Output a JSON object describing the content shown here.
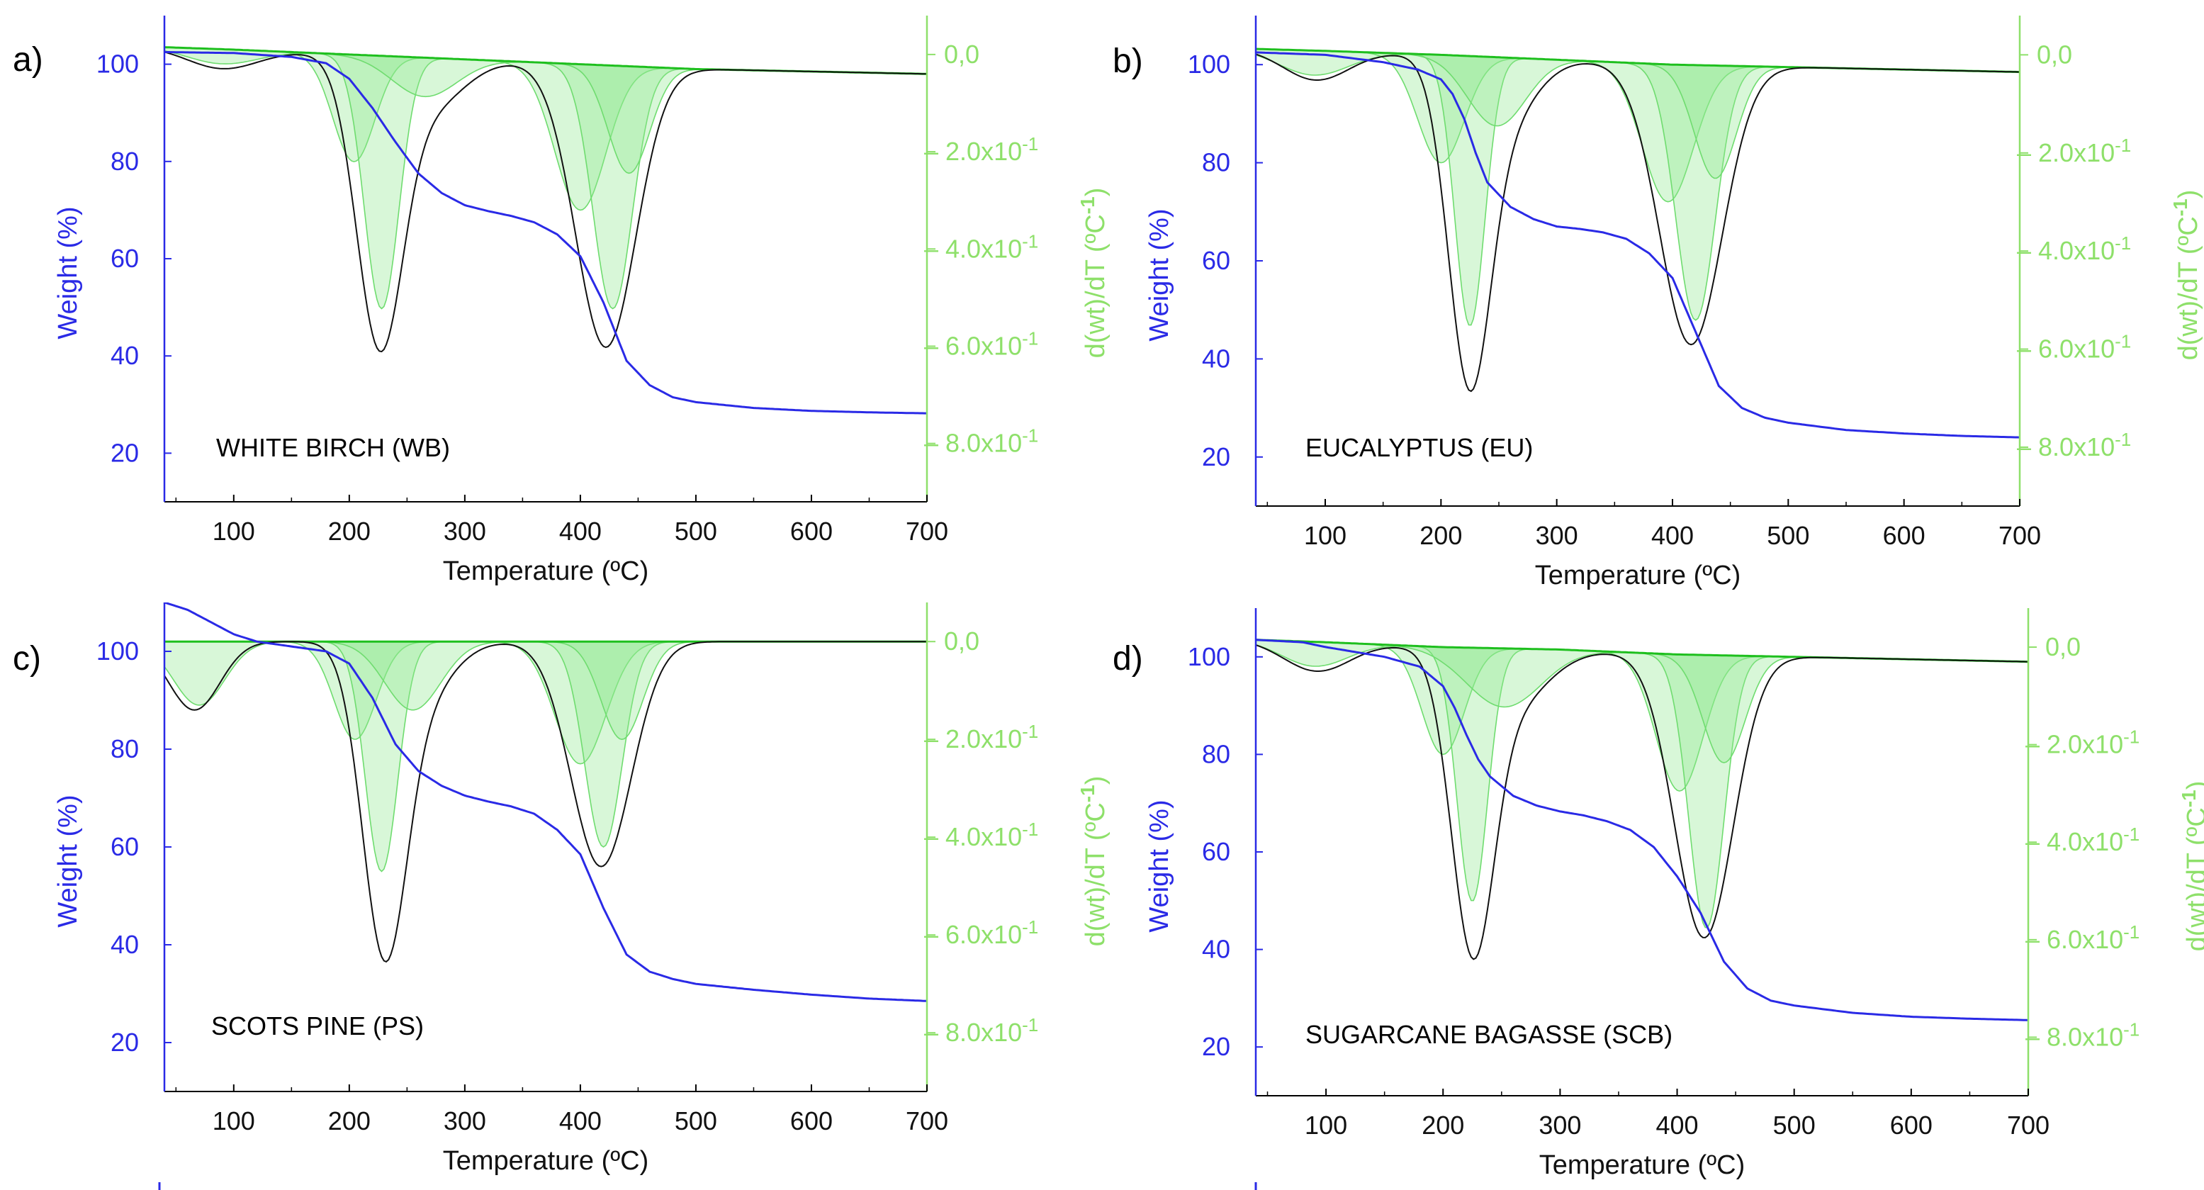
{
  "colors": {
    "weight": "#2a2ae6",
    "dtg_axis": "#8ee06a",
    "dtg_total": "#1ebf1e",
    "dtg_peak_fill": "#8fe88f",
    "dtg_peak_line": "#6fdc6f",
    "dtg_experimental": "#111111",
    "axis": "#000000"
  },
  "chart_data": [
    {
      "type": "line",
      "panel_label": "a)",
      "sample_label": "WHITE BIRCH (WB)",
      "xlabel": "Temperature (ºC)",
      "ylabel": "Weight (%)",
      "y2label": "d(wt)/dT (ºC-1)",
      "xlim": [
        40,
        700
      ],
      "ylim": [
        10,
        110
      ],
      "y2lim": [
        -0.92,
        0.08
      ],
      "xticks": [
        100,
        200,
        300,
        400,
        500,
        600,
        700
      ],
      "yticks": [
        20,
        40,
        60,
        80,
        100
      ],
      "y2ticks": [
        {
          "value": 0.0,
          "label": "0,0"
        },
        {
          "value": -0.2,
          "mantissa": "– 2.0x10",
          "exp": "-1"
        },
        {
          "value": -0.4,
          "mantissa": "– 4.0x10",
          "exp": "-1"
        },
        {
          "value": -0.6,
          "mantissa": "– 6.0x10",
          "exp": "-1"
        },
        {
          "value": -0.8,
          "mantissa": "– 8.0x10",
          "exp": "-1"
        }
      ],
      "weight_curve": {
        "x": [
          40,
          100,
          150,
          180,
          200,
          220,
          240,
          260,
          280,
          300,
          320,
          340,
          360,
          380,
          400,
          420,
          440,
          460,
          480,
          500,
          550,
          600,
          650,
          700
        ],
        "y": [
          102.5,
          102.3,
          101.5,
          100.2,
          97.0,
          91.0,
          84.0,
          77.5,
          73.5,
          71.0,
          69.8,
          68.8,
          67.5,
          65.0,
          60.5,
          51.0,
          39.0,
          34.0,
          31.5,
          30.5,
          29.3,
          28.7,
          28.4,
          28.2
        ]
      },
      "dtg_total": {
        "x": [
          40,
          100,
          200,
          300,
          400,
          500,
          600,
          700
        ],
        "y": [
          0.015,
          0.01,
          0.0,
          -0.01,
          -0.02,
          -0.03,
          -0.035,
          -0.04
        ]
      },
      "dtg_peaks": [
        {
          "center": 90,
          "depth": 0.03,
          "width": 30
        },
        {
          "center": 204,
          "depth": 0.22,
          "width": 18
        },
        {
          "center": 228,
          "depth": 0.52,
          "width": 15
        },
        {
          "center": 265,
          "depth": 0.08,
          "width": 28
        },
        {
          "center": 400,
          "depth": 0.3,
          "width": 22
        },
        {
          "center": 428,
          "depth": 0.5,
          "width": 17
        },
        {
          "center": 442,
          "depth": 0.22,
          "width": 18
        }
      ],
      "dtg_experimental_peaks": [
        {
          "center": 90,
          "depth": 0.04,
          "width": 30
        },
        {
          "center": 226,
          "depth": 0.57,
          "width": 20
        },
        {
          "center": 268,
          "depth": 0.1,
          "width": 30
        },
        {
          "center": 422,
          "depth": 0.58,
          "width": 26
        }
      ]
    },
    {
      "type": "line",
      "panel_label": "b)",
      "sample_label": "EUCALYPTUS (EU)",
      "xlabel": "Temperature (ºC)",
      "ylabel": "Weight (%)",
      "y2label": "d(wt)/dT (ºC-1)",
      "xlim": [
        40,
        700
      ],
      "ylim": [
        10,
        110
      ],
      "y2lim": [
        -0.92,
        0.08
      ],
      "xticks": [
        100,
        200,
        300,
        400,
        500,
        600,
        700
      ],
      "yticks": [
        20,
        40,
        60,
        80,
        100
      ],
      "y2ticks": [
        {
          "value": 0.0,
          "label": "0,0"
        },
        {
          "value": -0.2,
          "mantissa": "– 2.0x10",
          "exp": "-1"
        },
        {
          "value": -0.4,
          "mantissa": "– 4.0x10",
          "exp": "-1"
        },
        {
          "value": -0.6,
          "mantissa": "– 6.0x10",
          "exp": "-1"
        },
        {
          "value": -0.8,
          "mantissa": "– 8.0x10",
          "exp": "-1"
        }
      ],
      "weight_curve": {
        "x": [
          40,
          100,
          150,
          180,
          200,
          210,
          220,
          230,
          240,
          260,
          280,
          300,
          320,
          340,
          360,
          380,
          400,
          420,
          440,
          460,
          480,
          500,
          550,
          600,
          650,
          700
        ],
        "y": [
          102.5,
          102.0,
          100.5,
          99.0,
          97.0,
          94.0,
          89.0,
          82.0,
          76.0,
          71.0,
          68.5,
          67.0,
          66.5,
          65.8,
          64.5,
          61.5,
          56.5,
          45.5,
          34.5,
          30.0,
          28.0,
          27.0,
          25.5,
          24.8,
          24.3,
          24.0
        ]
      },
      "dtg_total": {
        "x": [
          40,
          100,
          200,
          300,
          400,
          500,
          600,
          700
        ],
        "y": [
          0.012,
          0.008,
          0.0,
          -0.01,
          -0.02,
          -0.025,
          -0.03,
          -0.035
        ]
      },
      "dtg_peaks": [
        {
          "center": 90,
          "depth": 0.05,
          "width": 30
        },
        {
          "center": 200,
          "depth": 0.22,
          "width": 20
        },
        {
          "center": 225,
          "depth": 0.55,
          "width": 13
        },
        {
          "center": 248,
          "depth": 0.14,
          "width": 25
        },
        {
          "center": 396,
          "depth": 0.28,
          "width": 22
        },
        {
          "center": 420,
          "depth": 0.52,
          "width": 17
        },
        {
          "center": 437,
          "depth": 0.23,
          "width": 18
        }
      ],
      "dtg_experimental_peaks": [
        {
          "center": 92,
          "depth": 0.06,
          "width": 28
        },
        {
          "center": 224,
          "depth": 0.59,
          "width": 18
        },
        {
          "center": 250,
          "depth": 0.14,
          "width": 28
        },
        {
          "center": 416,
          "depth": 0.57,
          "width": 27
        }
      ]
    },
    {
      "type": "line",
      "panel_label": "c)",
      "sample_label": "SCOTS PINE (PS)",
      "xlabel": "Temperature (ºC)",
      "ylabel": "Weight (%)",
      "y2label": "d(wt)/dT (ºC-1)",
      "xlim": [
        40,
        700
      ],
      "ylim": [
        10,
        110
      ],
      "y2lim": [
        -0.92,
        0.08
      ],
      "xticks": [
        100,
        200,
        300,
        400,
        500,
        600,
        700
      ],
      "yticks": [
        20,
        40,
        60,
        80,
        100
      ],
      "y2ticks": [
        {
          "value": 0.0,
          "label": "0,0"
        },
        {
          "value": -0.2,
          "mantissa": "– 2.0x10",
          "exp": "-1"
        },
        {
          "value": -0.4,
          "mantissa": "– 4.0x10",
          "exp": "-1"
        },
        {
          "value": -0.6,
          "mantissa": "– 6.0x10",
          "exp": "-1"
        },
        {
          "value": -0.8,
          "mantissa": "– 8.0x10",
          "exp": "-1"
        }
      ],
      "weight_curve": {
        "x": [
          40,
          60,
          80,
          100,
          120,
          150,
          180,
          200,
          220,
          240,
          260,
          280,
          300,
          320,
          340,
          360,
          380,
          400,
          420,
          440,
          460,
          480,
          500,
          550,
          600,
          650,
          700
        ],
        "y": [
          110.0,
          108.5,
          106.0,
          103.5,
          102.0,
          101.0,
          100.0,
          97.5,
          90.5,
          81.0,
          75.5,
          72.5,
          70.5,
          69.3,
          68.3,
          66.8,
          63.5,
          58.5,
          47.5,
          38.0,
          34.5,
          33.0,
          32.0,
          30.8,
          29.8,
          29.0,
          28.5
        ]
      },
      "dtg_total": {
        "x": [
          40,
          100,
          200,
          300,
          400,
          500,
          600,
          700
        ],
        "y": [
          0.0,
          0.0,
          0.0,
          0.0,
          0.0,
          0.0,
          0.0,
          0.0
        ]
      },
      "dtg_peaks": [
        {
          "center": 70,
          "depth": 0.13,
          "width": 22
        },
        {
          "center": 205,
          "depth": 0.2,
          "width": 18
        },
        {
          "center": 228,
          "depth": 0.47,
          "width": 14
        },
        {
          "center": 255,
          "depth": 0.14,
          "width": 24
        },
        {
          "center": 400,
          "depth": 0.25,
          "width": 22
        },
        {
          "center": 420,
          "depth": 0.42,
          "width": 16
        },
        {
          "center": 436,
          "depth": 0.2,
          "width": 18
        }
      ],
      "dtg_experimental_peaks": [
        {
          "center": 66,
          "depth": 0.14,
          "width": 22
        },
        {
          "center": 230,
          "depth": 0.58,
          "width": 19
        },
        {
          "center": 258,
          "depth": 0.12,
          "width": 28
        },
        {
          "center": 418,
          "depth": 0.46,
          "width": 26
        }
      ]
    },
    {
      "type": "line",
      "panel_label": "d)",
      "sample_label": "SUGARCANE BAGASSE (SCB)",
      "xlabel": "Temperature (ºC)",
      "ylabel": "Weight (%)",
      "y2label": "d(wt)/dT (ºC-1)",
      "xlim": [
        40,
        700
      ],
      "ylim": [
        10,
        110
      ],
      "y2lim": [
        -0.92,
        0.08
      ],
      "xticks": [
        100,
        200,
        300,
        400,
        500,
        600,
        700
      ],
      "yticks": [
        20,
        40,
        60,
        80,
        100
      ],
      "y2ticks": [
        {
          "value": 0.0,
          "label": "0,0"
        },
        {
          "value": -0.2,
          "mantissa": "– 2.0x10",
          "exp": "-1"
        },
        {
          "value": -0.4,
          "mantissa": "– 4.0x10",
          "exp": "-1"
        },
        {
          "value": -0.6,
          "mantissa": "– 6.0x10",
          "exp": "-1"
        },
        {
          "value": -0.8,
          "mantissa": "– 8.0x10",
          "exp": "-1"
        }
      ],
      "weight_curve": {
        "x": [
          40,
          80,
          100,
          150,
          180,
          200,
          210,
          220,
          230,
          240,
          260,
          280,
          300,
          320,
          340,
          360,
          380,
          400,
          420,
          440,
          460,
          480,
          500,
          550,
          600,
          650,
          700
        ],
        "y": [
          103.5,
          103.0,
          102.0,
          100.0,
          98.0,
          94.0,
          89.5,
          84.0,
          79.0,
          75.5,
          71.5,
          69.5,
          68.3,
          67.5,
          66.3,
          64.5,
          61.0,
          55.0,
          47.5,
          37.5,
          32.0,
          29.5,
          28.5,
          27.0,
          26.2,
          25.8,
          25.5
        ]
      },
      "dtg_total": {
        "x": [
          40,
          100,
          200,
          300,
          400,
          500,
          600,
          700
        ],
        "y": [
          0.015,
          0.01,
          0.0,
          -0.005,
          -0.015,
          -0.02,
          -0.025,
          -0.03
        ]
      },
      "dtg_peaks": [
        {
          "center": 90,
          "depth": 0.05,
          "width": 28
        },
        {
          "center": 200,
          "depth": 0.22,
          "width": 18
        },
        {
          "center": 225,
          "depth": 0.52,
          "width": 13
        },
        {
          "center": 252,
          "depth": 0.12,
          "width": 32
        },
        {
          "center": 402,
          "depth": 0.28,
          "width": 20
        },
        {
          "center": 425,
          "depth": 0.56,
          "width": 15
        },
        {
          "center": 440,
          "depth": 0.22,
          "width": 18
        }
      ],
      "dtg_experimental_peaks": [
        {
          "center": 92,
          "depth": 0.06,
          "width": 28
        },
        {
          "center": 225,
          "depth": 0.56,
          "width": 18
        },
        {
          "center": 255,
          "depth": 0.12,
          "width": 32
        },
        {
          "center": 423,
          "depth": 0.58,
          "width": 25
        }
      ]
    }
  ]
}
